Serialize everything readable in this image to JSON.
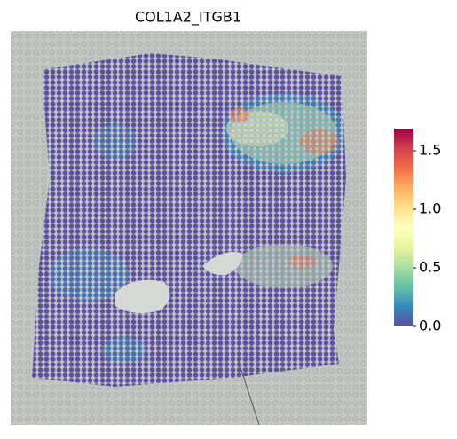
{
  "chart_data": {
    "type": "spatial",
    "title": "COL1A2_ITGB1",
    "clim": [
      0,
      1.69
    ],
    "colorbar_ticks": [
      {
        "value": 0,
        "label": "0.0"
      },
      {
        "value": 0.5,
        "label": "0.5"
      },
      {
        "value": 1,
        "label": "1.0"
      },
      {
        "value": 1.5,
        "label": "1.5"
      }
    ],
    "colormap": [
      "#5e4fa2",
      "#3288bd",
      "#66c2a5",
      "#abdda4",
      "#e6f598",
      "#ffffbf",
      "#fee08b",
      "#fdae61",
      "#f46d43",
      "#d53e4f",
      "#9e0142"
    ]
  }
}
